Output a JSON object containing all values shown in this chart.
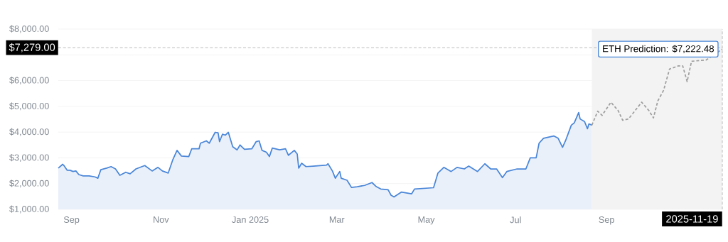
{
  "chart_data": {
    "type": "area",
    "xlim": [
      "2024-08-23",
      "2025-11-19"
    ],
    "ylim": [
      1000,
      8000
    ],
    "xticks": [
      {
        "value": "2024-09-01",
        "label": "Sep"
      },
      {
        "value": "2024-11-01",
        "label": "Nov"
      },
      {
        "value": "2025-01-01",
        "label": "Jan 2025"
      },
      {
        "value": "2025-03-01",
        "label": "Mar"
      },
      {
        "value": "2025-05-01",
        "label": "May"
      },
      {
        "value": "2025-07-01",
        "label": "Jul"
      },
      {
        "value": "2025-09-01",
        "label": "Sep"
      }
    ],
    "yticks": [
      {
        "value": 1000,
        "label": "$1,000.00"
      },
      {
        "value": 2000,
        "label": "$2,000.00"
      },
      {
        "value": 3000,
        "label": "$3,000.00"
      },
      {
        "value": 4000,
        "label": "$4,000.00"
      },
      {
        "value": 5000,
        "label": "$5,000.00"
      },
      {
        "value": 6000,
        "label": "$6,000.00"
      },
      {
        "value": 7000,
        "label": null
      },
      {
        "value": 8000,
        "label": "$8,000.00"
      }
    ],
    "grid": "y",
    "marker": "none",
    "series": [
      {
        "color": "#4a86d8",
        "line_style": "solid",
        "x": [
          "2024-08-23",
          "2024-08-26",
          "2024-08-27",
          "2024-08-29",
          "2024-08-31",
          "2024-09-02",
          "2024-09-04",
          "2024-09-06",
          "2024-09-09",
          "2024-09-13",
          "2024-09-17",
          "2024-09-19",
          "2024-09-21",
          "2024-09-25",
          "2024-09-28",
          "2024-10-01",
          "2024-10-04",
          "2024-10-08",
          "2024-10-11",
          "2024-10-15",
          "2024-10-21",
          "2024-10-26",
          "2024-10-30",
          "2024-11-02",
          "2024-11-06",
          "2024-11-09",
          "2024-11-12",
          "2024-11-15",
          "2024-11-20",
          "2024-11-22",
          "2024-11-27",
          "2024-11-28",
          "2024-12-02",
          "2024-12-04",
          "2024-12-08",
          "2024-12-10",
          "2024-12-11",
          "2024-12-13",
          "2024-12-15",
          "2024-12-17",
          "2024-12-20",
          "2024-12-23",
          "2024-12-25",
          "2024-12-28",
          "2025-01-02",
          "2025-01-05",
          "2025-01-07",
          "2025-01-09",
          "2025-01-12",
          "2025-01-14",
          "2025-01-16",
          "2025-01-21",
          "2025-01-25",
          "2025-01-27",
          "2025-01-31",
          "2025-02-02",
          "2025-02-03",
          "2025-02-05",
          "2025-02-08",
          "2025-02-13",
          "2025-02-22",
          "2025-02-23",
          "2025-02-26",
          "2025-02-28",
          "2025-03-03",
          "2025-03-04",
          "2025-03-08",
          "2025-03-11",
          "2025-03-15",
          "2025-03-20",
          "2025-03-25",
          "2025-03-28",
          "2025-03-31",
          "2025-04-05",
          "2025-04-07",
          "2025-04-09",
          "2025-04-14",
          "2025-04-21",
          "2025-04-23",
          "2025-05-06",
          "2025-05-09",
          "2025-05-13",
          "2025-05-18",
          "2025-05-22",
          "2025-05-27",
          "2025-05-30",
          "2025-06-05",
          "2025-06-10",
          "2025-06-14",
          "2025-06-18",
          "2025-06-22",
          "2025-06-25",
          "2025-07-02",
          "2025-07-08",
          "2025-07-11",
          "2025-07-15",
          "2025-07-17",
          "2025-07-20",
          "2025-07-27",
          "2025-07-30",
          "2025-08-02",
          "2025-08-04",
          "2025-08-08",
          "2025-08-10",
          "2025-08-13",
          "2025-08-14",
          "2025-08-17",
          "2025-08-19",
          "2025-08-20",
          "2025-08-22"
        ],
        "values": [
          2600,
          2750,
          2690,
          2520,
          2520,
          2470,
          2490,
          2350,
          2300,
          2300,
          2260,
          2210,
          2540,
          2600,
          2660,
          2570,
          2320,
          2440,
          2380,
          2570,
          2700,
          2490,
          2630,
          2490,
          2410,
          2910,
          3290,
          3070,
          3050,
          3350,
          3350,
          3570,
          3660,
          3570,
          3990,
          3970,
          3630,
          3920,
          3880,
          3990,
          3430,
          3310,
          3500,
          3330,
          3350,
          3630,
          3660,
          3290,
          3220,
          3050,
          3380,
          3310,
          3350,
          3100,
          3290,
          3150,
          2600,
          2790,
          2660,
          2680,
          2720,
          2770,
          2490,
          2210,
          2470,
          2210,
          2130,
          1850,
          1880,
          1930,
          2040,
          1880,
          1790,
          1760,
          1550,
          1480,
          1670,
          1600,
          1790,
          1840,
          2410,
          2630,
          2470,
          2630,
          2570,
          2680,
          2470,
          2770,
          2570,
          2570,
          2230,
          2470,
          2570,
          2570,
          3000,
          3000,
          3570,
          3760,
          3850,
          3760,
          3410,
          3660,
          4270,
          4360,
          4760,
          4510,
          4410,
          4130,
          4320,
          4270
        ]
      },
      {
        "type": "line",
        "color": "#9e9e9e",
        "line_style": "dashed",
        "x": [
          "2025-08-22",
          "2025-08-26",
          "2025-08-29",
          "2025-09-04",
          "2025-09-09",
          "2025-09-12",
          "2025-09-16",
          "2025-09-25",
          "2025-09-30",
          "2025-10-03",
          "2025-10-06",
          "2025-10-10",
          "2025-10-14",
          "2025-10-20",
          "2025-10-23",
          "2025-10-26",
          "2025-10-29",
          "2025-11-08",
          "2025-11-19"
        ],
        "values": [
          4270,
          4810,
          4650,
          5160,
          4830,
          4460,
          4510,
          5160,
          4830,
          4550,
          5210,
          5630,
          6450,
          6570,
          6570,
          5960,
          6750,
          6800,
          7222.48
        ]
      }
    ],
    "bands": [
      {
        "axis": "x",
        "from": "2025-08-22",
        "to": "2025-11-19",
        "color": "#f3f3f3"
      }
    ],
    "ref_lines": [
      {
        "axis": "y",
        "value": 7279,
        "label": "$7,279.00",
        "line_style": "dashed",
        "color": "#aaaaaa"
      },
      {
        "axis": "x",
        "value": "2025-11-19",
        "label": "2025-11-19",
        "line_style": "dashed",
        "color": "#aaaaaa"
      }
    ],
    "annotations": [
      {
        "text": "ETH Prediction: $7,222.48",
        "x": "2025-11-19",
        "y": 7222.48
      }
    ]
  }
}
